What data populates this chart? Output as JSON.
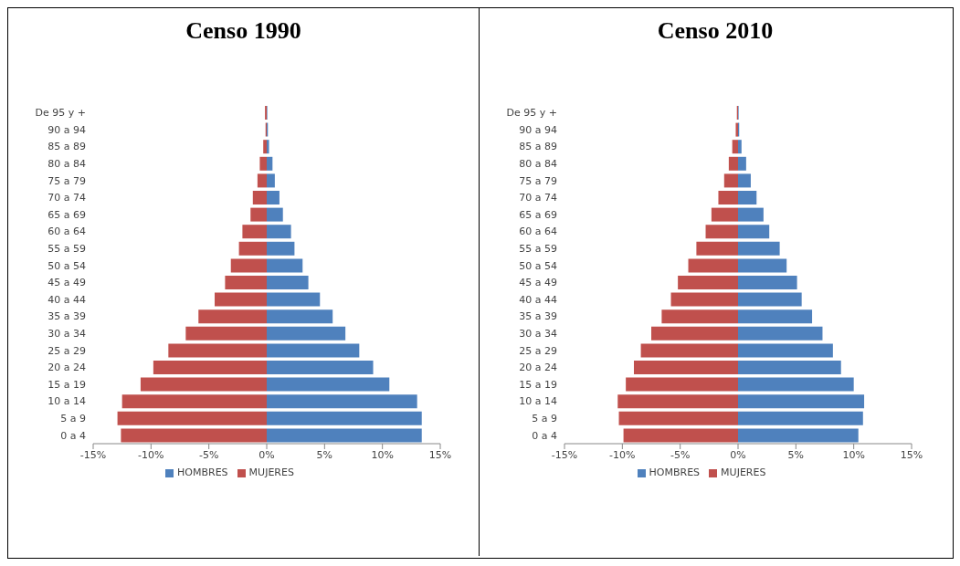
{
  "chart_data": [
    {
      "type": "bar",
      "title": "Censo 1990",
      "orientation": "horizontal",
      "stacked": true,
      "legend": "bottom",
      "grid": false,
      "categories": [
        "De 95 y +",
        "90 a 94",
        "85 a 89",
        "80 a 84",
        "75 a 79",
        "70 a 74",
        "65 a 69",
        "60 a 64",
        "55 a 59",
        "50 a 54",
        "45 a 49",
        "40 a 44",
        "35 a 39",
        "30 a 34",
        "25 a 29",
        "20 a 24",
        "15 a 19",
        "10 a 14",
        "5 a 9",
        "0 a 4"
      ],
      "xlim": [
        -15,
        15
      ],
      "xticks": [
        {
          "value": -15,
          "label": "-15%"
        },
        {
          "value": -10,
          "label": "-10%"
        },
        {
          "value": -5,
          "label": "-5%"
        },
        {
          "value": 0,
          "label": "0%"
        },
        {
          "value": 5,
          "label": "5%"
        },
        {
          "value": 10,
          "label": "10%"
        },
        {
          "value": 15,
          "label": "15%"
        }
      ],
      "series": [
        {
          "name": "MUJERES",
          "color": "#c0504d",
          "values": [
            -0.15,
            -0.1,
            -0.3,
            -0.6,
            -0.8,
            -1.2,
            -1.4,
            -2.1,
            -2.4,
            -3.1,
            -3.6,
            -4.5,
            -5.9,
            -7.0,
            -8.5,
            -9.8,
            -10.9,
            -12.5,
            -12.9,
            -12.6
          ]
        },
        {
          "name": "HOMBRES",
          "color": "#4f81bd",
          "values": [
            0.05,
            0.1,
            0.2,
            0.5,
            0.7,
            1.1,
            1.4,
            2.1,
            2.4,
            3.1,
            3.6,
            4.6,
            5.7,
            6.8,
            8.0,
            9.2,
            10.6,
            13.0,
            13.4,
            13.4
          ]
        }
      ]
    },
    {
      "type": "bar",
      "title": "Censo 2010",
      "orientation": "horizontal",
      "stacked": true,
      "legend": "bottom",
      "grid": false,
      "categories": [
        "De 95 y +",
        "90 a 94",
        "85 a 89",
        "80 a 84",
        "75 a 79",
        "70 a 74",
        "65 a 69",
        "60 a 64",
        "55 a 59",
        "50 a 54",
        "45 a 49",
        "40 a 44",
        "35 a 39",
        "30 a 34",
        "25 a 29",
        "20 a 24",
        "15 a 19",
        "10 a 14",
        "5 a 9",
        "0 a 4"
      ],
      "xlim": [
        -15,
        15
      ],
      "xticks": [
        {
          "value": -15,
          "label": "-15%"
        },
        {
          "value": -10,
          "label": "-10%"
        },
        {
          "value": -5,
          "label": "-5%"
        },
        {
          "value": 0,
          "label": "0%"
        },
        {
          "value": 5,
          "label": "5%"
        },
        {
          "value": 10,
          "label": "10%"
        },
        {
          "value": 15,
          "label": "15%"
        }
      ],
      "series": [
        {
          "name": "MUJERES",
          "color": "#c0504d",
          "values": [
            -0.1,
            -0.2,
            -0.5,
            -0.8,
            -1.2,
            -1.7,
            -2.3,
            -2.8,
            -3.6,
            -4.3,
            -5.2,
            -5.8,
            -6.6,
            -7.5,
            -8.4,
            -9.0,
            -9.7,
            -10.4,
            -10.3,
            -9.9
          ]
        },
        {
          "name": "HOMBRES",
          "color": "#4f81bd",
          "values": [
            0.05,
            0.1,
            0.3,
            0.7,
            1.1,
            1.6,
            2.2,
            2.7,
            3.6,
            4.2,
            5.1,
            5.5,
            6.4,
            7.3,
            8.2,
            8.9,
            10.0,
            10.9,
            10.8,
            10.4
          ]
        }
      ]
    }
  ]
}
